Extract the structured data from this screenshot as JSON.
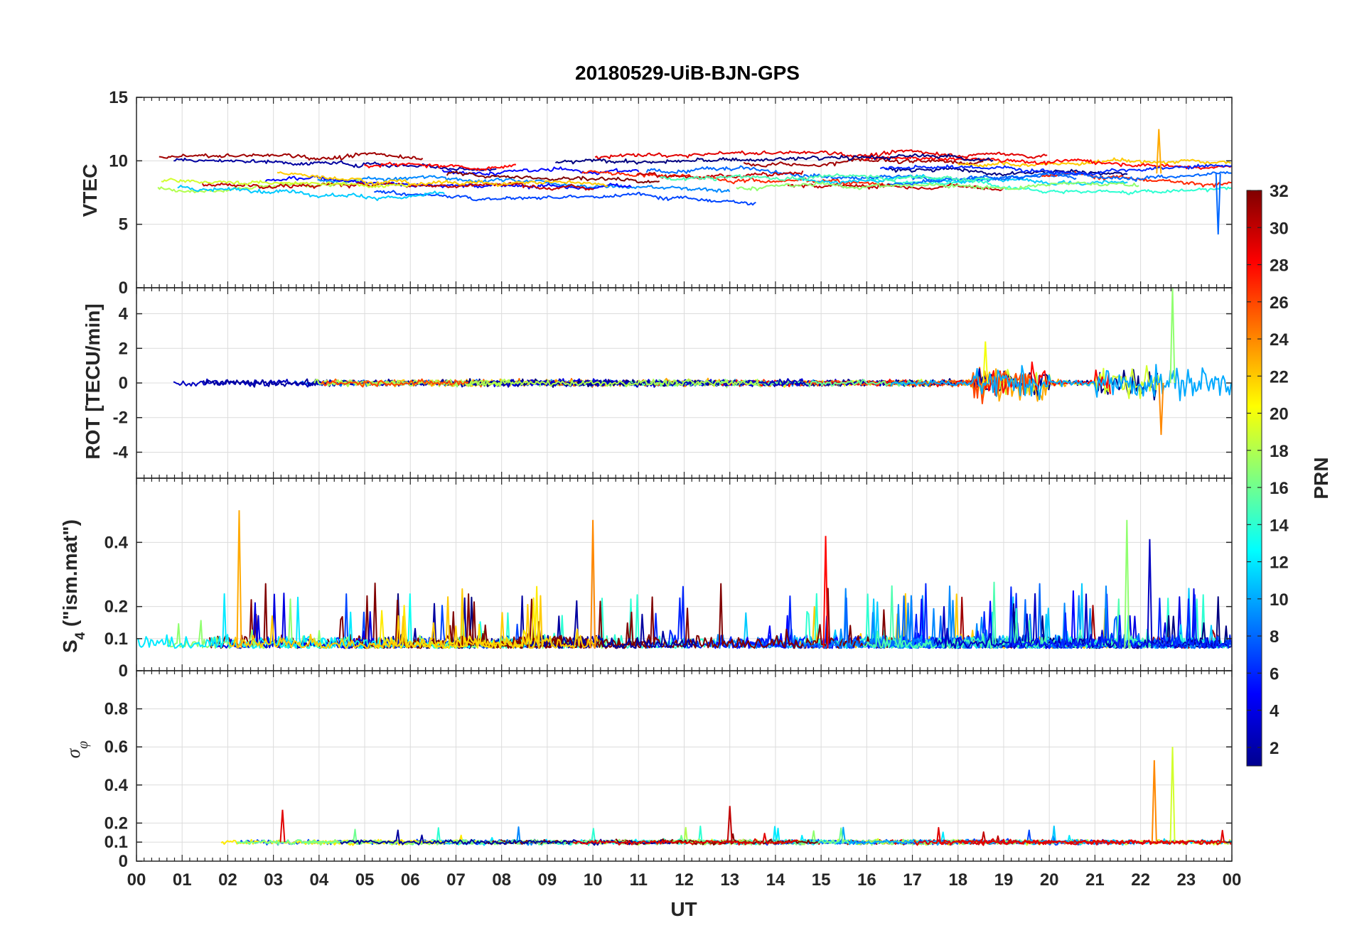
{
  "chart_data": {
    "type": "line",
    "title": "20180529-UiB-BJN-GPS",
    "xlabel": "UT",
    "x_tick_labels": [
      "00",
      "01",
      "02",
      "03",
      "04",
      "05",
      "06",
      "07",
      "08",
      "09",
      "10",
      "11",
      "12",
      "13",
      "14",
      "15",
      "16",
      "17",
      "18",
      "19",
      "20",
      "21",
      "22",
      "23",
      "00"
    ],
    "xlim": [
      0,
      24
    ],
    "colorbar": {
      "label": "PRN",
      "range": [
        1,
        32
      ],
      "tick_labels": [
        "2",
        "4",
        "6",
        "8",
        "10",
        "12",
        "14",
        "16",
        "18",
        "20",
        "22",
        "24",
        "26",
        "28",
        "30",
        "32"
      ],
      "colormap": "jet"
    },
    "series_note": "One trace per GPS satellite PRN (1-32), colored by PRN",
    "panels": [
      {
        "ylabel": "VTEC",
        "ylim": [
          0,
          15
        ],
        "y_tick_labels": [
          "0",
          "5",
          "10",
          "15"
        ],
        "baseline": 9,
        "data_range": [
          4,
          12.5
        ],
        "description": "VTEC mostly 7-12 TECU across the day; dip to ~4 near 23:50 UT"
      },
      {
        "ylabel": "ROT [TECU/min]",
        "ylim": [
          -5.5,
          5.5
        ],
        "y_tick_labels": [
          "-4",
          "-2",
          "0",
          "2",
          "4"
        ],
        "baseline": 0,
        "data_range": [
          -3,
          5.5
        ],
        "description": "ROT near 0 with enhanced fluctuations 18-20 UT and 21-24 UT; peak ~5.5 near 22.7 UT"
      },
      {
        "ylabel": "S4 (\"ism.mat\")",
        "ylabel_main": "S",
        "ylabel_sub": "4",
        "ylabel_rest": " (\"ism.mat\")",
        "ylim": [
          0,
          0.6
        ],
        "y_tick_labels": [
          "0",
          "0.1",
          "0.2",
          "0.4"
        ],
        "baseline": 0.07,
        "data_range": [
          0.04,
          0.5
        ],
        "description": "S4 background 0.05-0.15 with spikes up to ~0.5 near 02:15 and ~0.47 near 10:00 UT"
      },
      {
        "ylabel": "σφ",
        "ylabel_main": "σ",
        "ylabel_sub": "φ",
        "ylim": [
          0,
          1
        ],
        "y_tick_labels": [
          "0",
          "0.1",
          "0.2",
          "0.4",
          "0.6",
          "0.8"
        ],
        "baseline": 0.1,
        "data_range": [
          0.07,
          0.6
        ],
        "description": "Phase scintillation near 0.1 with spikes ~0.53 at 22.3 UT and ~0.6 at 22.7 UT"
      }
    ]
  }
}
